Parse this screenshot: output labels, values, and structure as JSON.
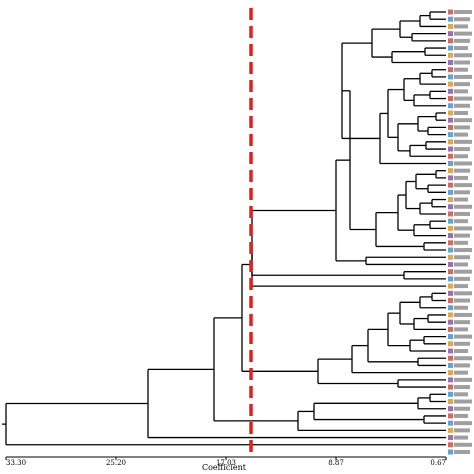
{
  "dendrogram": {
    "x_axis": {
      "title": "Coefficient",
      "ticks": [
        "33.30",
        "25.20",
        "17.03",
        "8.87",
        "0.67"
      ]
    },
    "cut_line": {
      "color": "#e0201c",
      "style": "dashed"
    },
    "line_color": "#000000",
    "leaf_label_colors": [
      "#c0392b",
      "#2e86c1",
      "#d68910",
      "#7d3c98"
    ],
    "leaf_count": 62
  }
}
